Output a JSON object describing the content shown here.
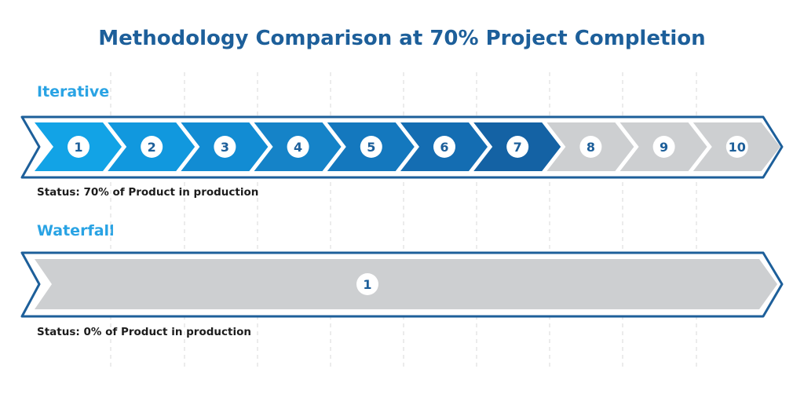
{
  "title": "Methodology Comparison at 70% Project Completion",
  "colors": {
    "title": "#1d5f9a",
    "label": "#29a3e4",
    "outline": "#1d5f9a",
    "grey": "#cdcfd1",
    "iteration_blues": [
      "#12a3e6",
      "#1198de",
      "#128cd3",
      "#1583c8",
      "#1478be",
      "#146db2",
      "#1462a4"
    ]
  },
  "iterative": {
    "label": "Iterative",
    "status": "Status: 70% of Product in production",
    "completed": 7,
    "iterations": [
      "1",
      "2",
      "3",
      "4",
      "5",
      "6",
      "7",
      "8",
      "9",
      "10"
    ]
  },
  "waterfall": {
    "label": "Waterfall",
    "status": "Status: 0% of Product in production",
    "phases": [
      "1"
    ]
  }
}
